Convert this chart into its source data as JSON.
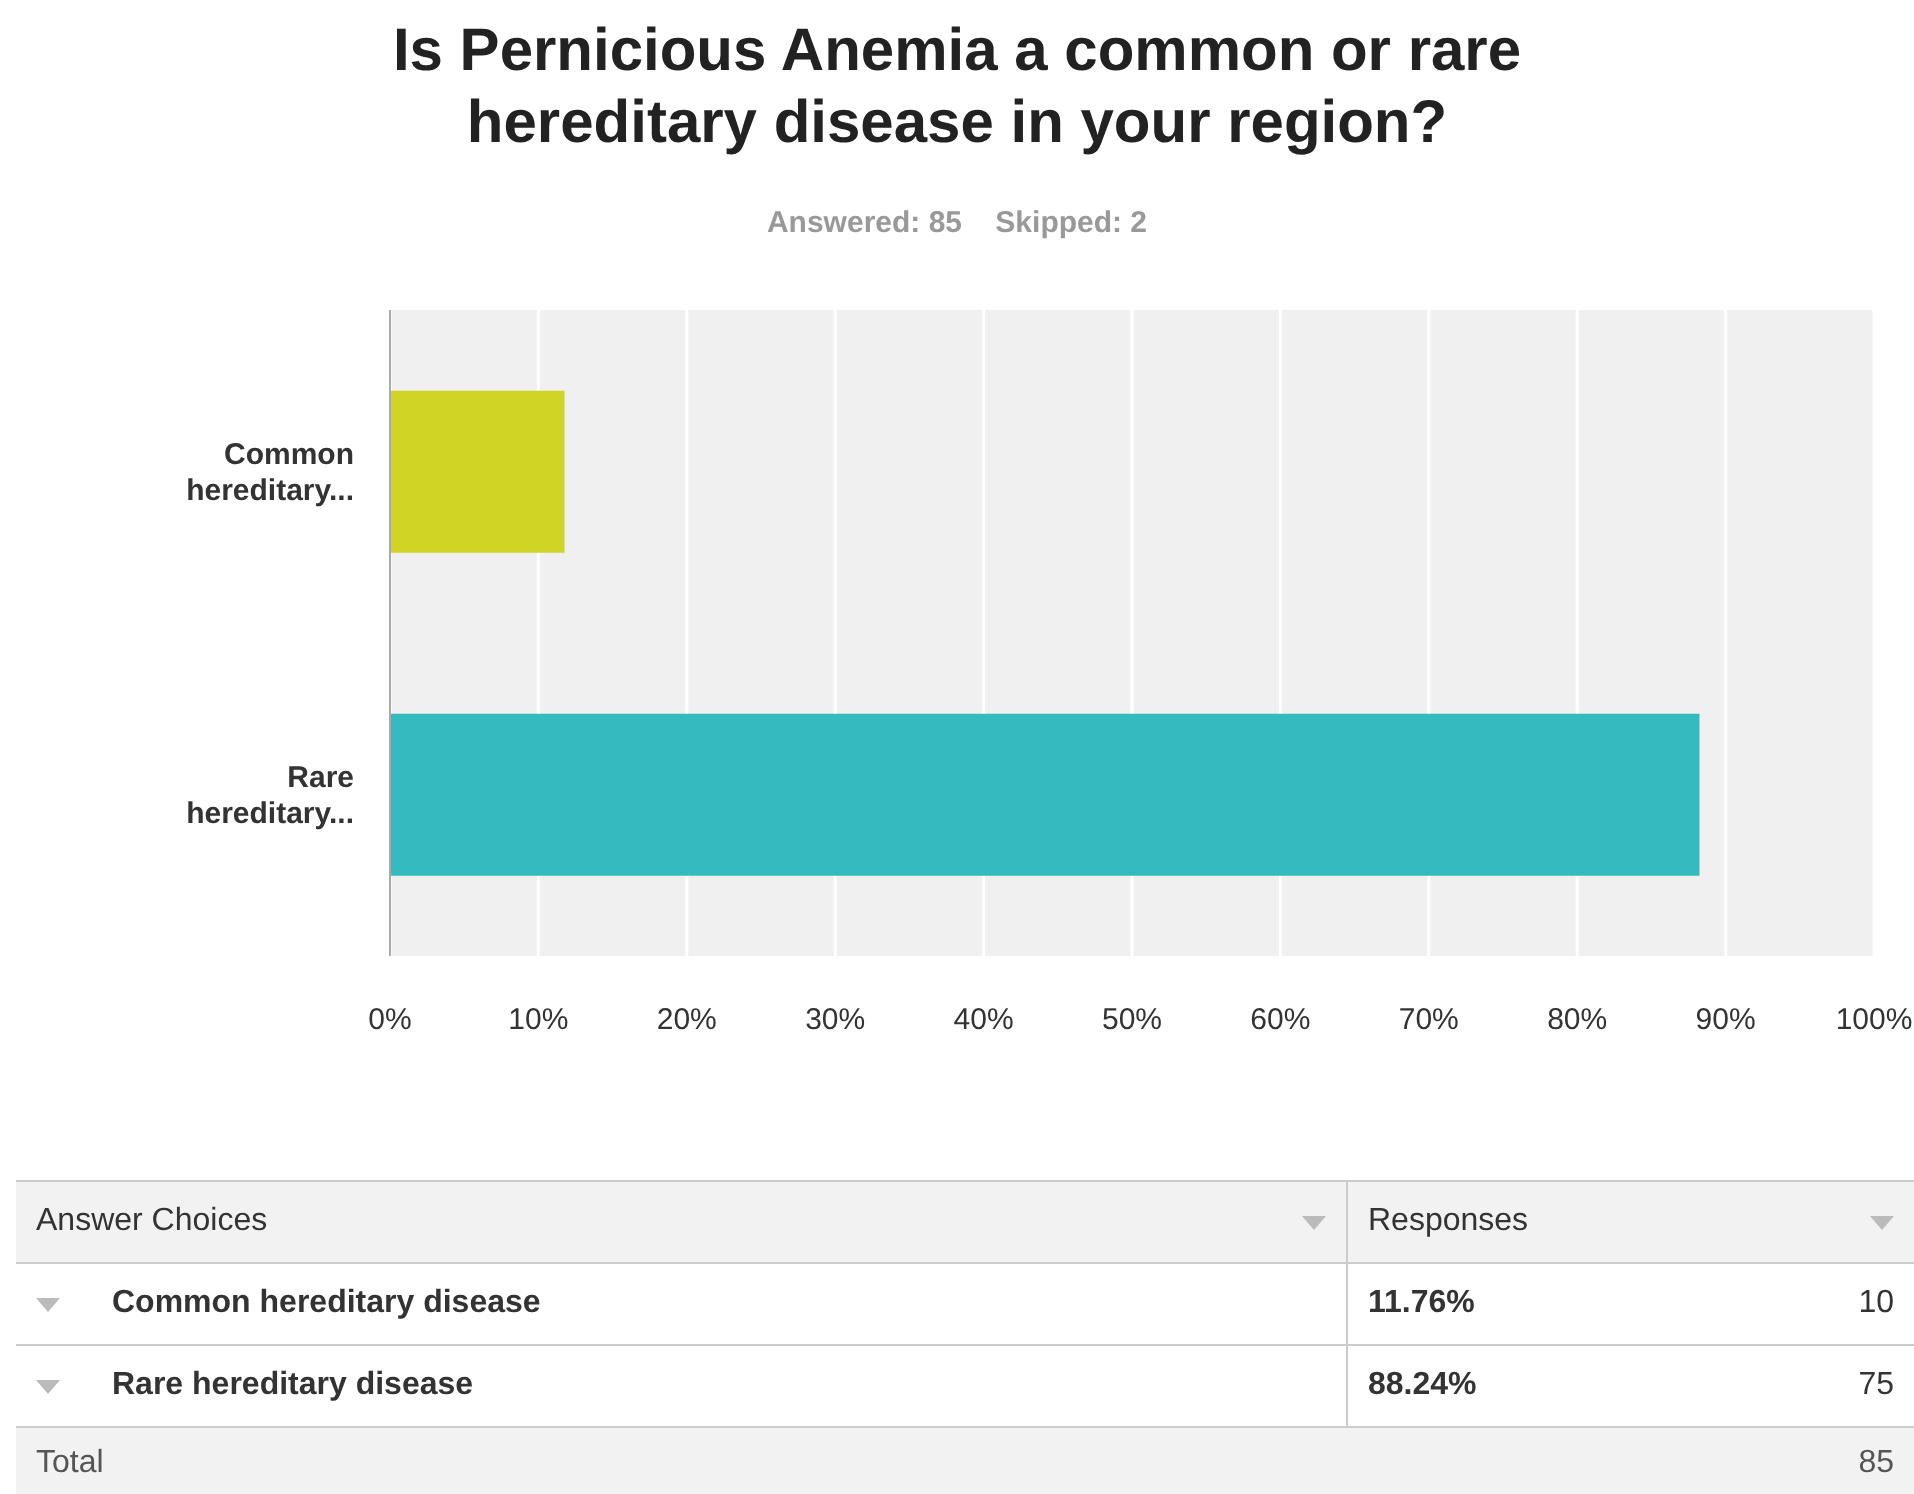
{
  "chart_data": {
    "type": "bar",
    "orientation": "horizontal",
    "title": "Is Pernicious Anemia a common or rare hereditary disease in your region?",
    "subtitle": "Answered: 85    Skipped: 2",
    "categories": [
      "Common hereditary...",
      "Rare hereditary..."
    ],
    "values": [
      11.76,
      88.24
    ],
    "colors": [
      "#d0d424",
      "#33bbbf"
    ],
    "xlim": [
      0,
      100
    ],
    "xticks": [
      {
        "value": 0,
        "label": "0%"
      },
      {
        "value": 10,
        "label": "10%"
      },
      {
        "value": 20,
        "label": "20%"
      },
      {
        "value": 30,
        "label": "30%"
      },
      {
        "value": 40,
        "label": "40%"
      },
      {
        "value": 50,
        "label": "50%"
      },
      {
        "value": 60,
        "label": "60%"
      },
      {
        "value": 70,
        "label": "70%"
      },
      {
        "value": 80,
        "label": "80%"
      },
      {
        "value": 90,
        "label": "90%"
      },
      {
        "value": 100,
        "label": "100%"
      }
    ],
    "grid": "x",
    "legend": false,
    "annotations": [
      "Answer Choices",
      "Responses",
      "Common hereditary disease",
      "11.76%",
      "10",
      "Rare hereditary disease",
      "88.24%",
      "75",
      "Total",
      "85"
    ]
  }
}
